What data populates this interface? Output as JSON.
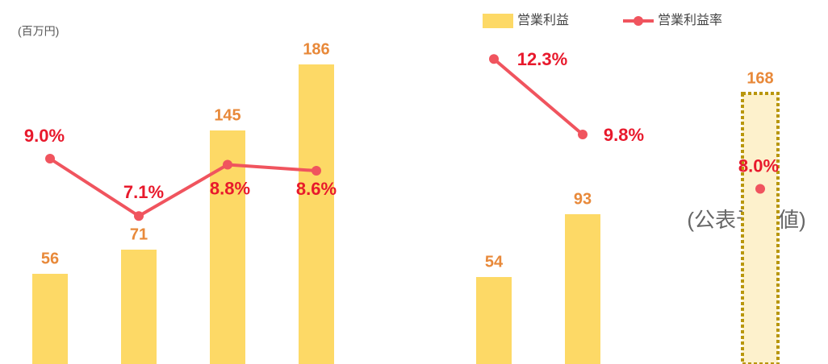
{
  "chart_data": {
    "type": "bar_line",
    "unit_label": "(百万円)",
    "annotation": "(公表予想値)",
    "categories": [
      null,
      null,
      null,
      null,
      null,
      null,
      null,
      null,
      null
    ],
    "ylim": [
      0,
      225
    ],
    "y2lim": [
      2.2,
      14.2
    ],
    "series": [
      {
        "name": "営業利益",
        "type": "bar",
        "color": "#fdd966",
        "label_color": "#e8893a",
        "forecast_fill": "#fdf1cc",
        "forecast_stroke": "#b8960c",
        "forecast": [
          false,
          false,
          false,
          false,
          false,
          false,
          false,
          false,
          true
        ],
        "values": [
          56,
          71,
          145,
          186,
          null,
          54,
          93,
          null,
          168
        ]
      },
      {
        "name": "営業利益率",
        "type": "line",
        "axis": "y2",
        "color": "#f0545e",
        "label_color": "#e8192c",
        "values": [
          9.0,
          7.1,
          8.8,
          8.6,
          null,
          12.3,
          9.8,
          null,
          8.0
        ],
        "value_labels": [
          "9.0%",
          "7.1%",
          "8.8%",
          "8.6%",
          null,
          "12.3%",
          "9.8%",
          null,
          "8.0%"
        ]
      }
    ]
  }
}
